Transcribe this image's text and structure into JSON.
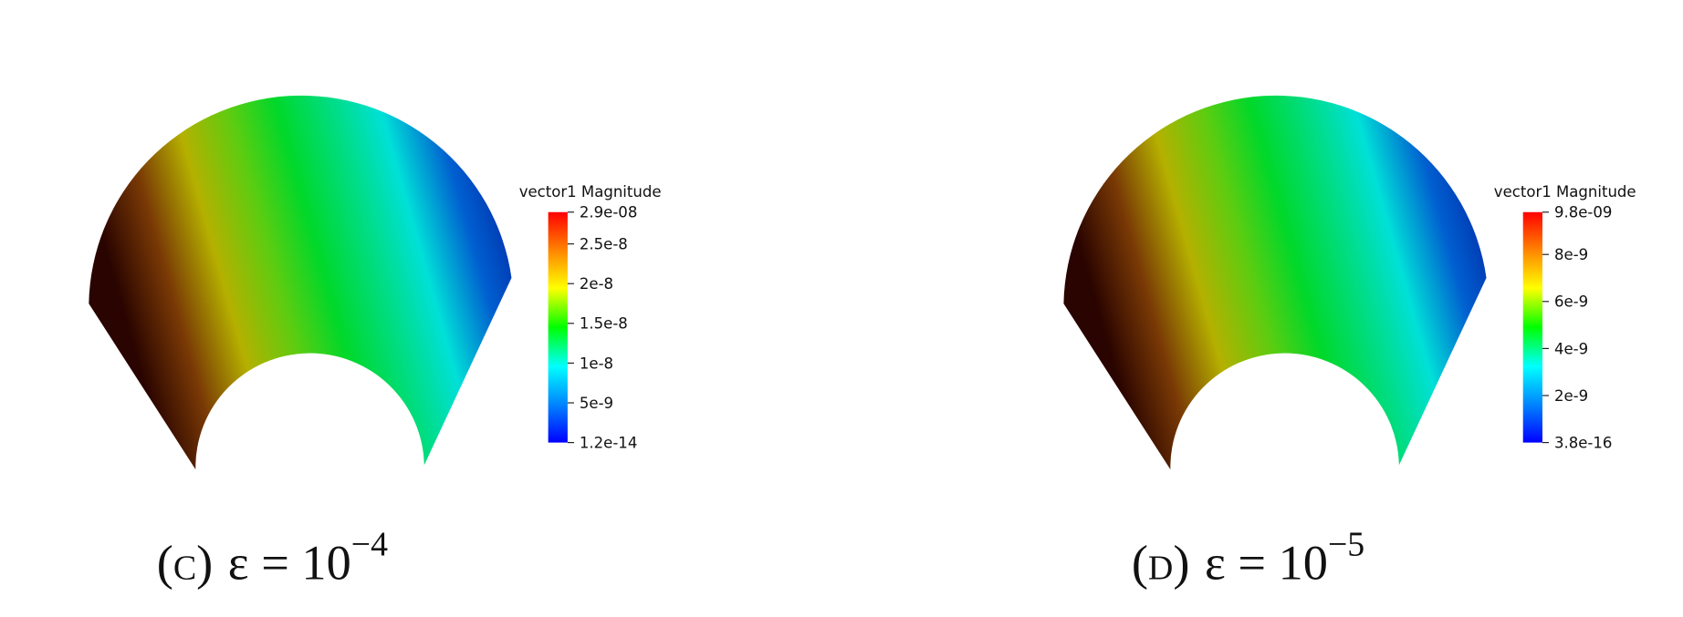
{
  "panels": [
    {
      "colorbar": {
        "title": "vector1 Magnitude",
        "range": [
          1.2e-14,
          2.9e-08
        ],
        "ticks": [
          {
            "value": 2.9e-08,
            "label": "2.9e-08"
          },
          {
            "value": 2.5e-08,
            "label": "2.5e-8"
          },
          {
            "value": 2e-08,
            "label": "2e-8"
          },
          {
            "value": 1.5e-08,
            "label": "1.5e-8"
          },
          {
            "value": 1e-08,
            "label": "1e-8"
          },
          {
            "value": 5e-09,
            "label": "5e-9"
          },
          {
            "value": 1.2e-14,
            "label": "1.2e-14"
          }
        ]
      },
      "caption": {
        "label": "(c)",
        "math": "ε = 10",
        "exponent": "−4"
      }
    },
    {
      "colorbar": {
        "title": "vector1 Magnitude",
        "range": [
          3.8e-16,
          9.8e-09
        ],
        "ticks": [
          {
            "value": 9.8e-09,
            "label": "9.8e-09"
          },
          {
            "value": 8e-09,
            "label": "8e-9"
          },
          {
            "value": 6e-09,
            "label": "6e-9"
          },
          {
            "value": 4e-09,
            "label": "4e-9"
          },
          {
            "value": 2e-09,
            "label": "2e-9"
          },
          {
            "value": 3.8e-16,
            "label": "3.8e-16"
          }
        ]
      },
      "caption": {
        "label": "(d)",
        "math": "ε = 10",
        "exponent": "−5"
      }
    }
  ]
}
